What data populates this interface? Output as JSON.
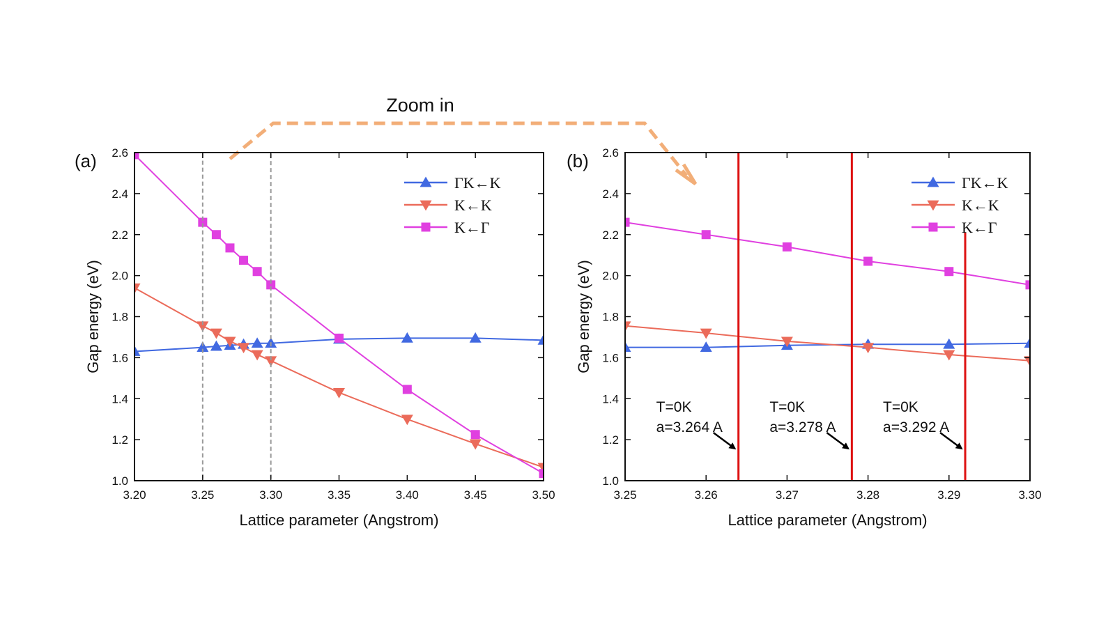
{
  "zoom_label": "Zoom in",
  "colors": {
    "gamma_k_k": "#4169E1",
    "k_k": "#EB6B5A",
    "k_gamma": "#E040E0",
    "marker_line": "#DD1111",
    "zoom_arrow": "#F2AE78",
    "zoom_box": "#999999"
  },
  "chart_data": [
    {
      "type": "line",
      "panel_label": "(a)",
      "xlabel": "Lattice parameter (Angstrom)",
      "ylabel": "Gap energy (eV)",
      "xlim": [
        3.2,
        3.5
      ],
      "ylim": [
        1.0,
        2.6
      ],
      "xticks": [
        "3.20",
        "3.25",
        "3.30",
        "3.35",
        "3.40",
        "3.45",
        "3.50"
      ],
      "yticks": [
        "1.0",
        "1.2",
        "1.4",
        "1.6",
        "1.8",
        "2.0",
        "2.2",
        "2.4",
        "2.6"
      ],
      "legend_position": "top-right",
      "zoom_region": {
        "x": [
          3.25,
          3.3
        ],
        "y": [
          1.0,
          2.6
        ]
      },
      "series": [
        {
          "name": "ΓK←K",
          "marker": "triangle-up",
          "x": [
            3.2,
            3.25,
            3.26,
            3.27,
            3.28,
            3.29,
            3.3,
            3.35,
            3.4,
            3.45,
            3.5
          ],
          "y": [
            1.63,
            1.65,
            1.655,
            1.66,
            1.665,
            1.67,
            1.67,
            1.69,
            1.695,
            1.695,
            1.685
          ]
        },
        {
          "name": "K←K",
          "marker": "triangle-down",
          "x": [
            3.2,
            3.25,
            3.26,
            3.27,
            3.28,
            3.29,
            3.3,
            3.35,
            3.4,
            3.45,
            3.5
          ],
          "y": [
            1.94,
            1.755,
            1.72,
            1.68,
            1.65,
            1.615,
            1.585,
            1.43,
            1.3,
            1.18,
            1.065
          ]
        },
        {
          "name": "K←Γ",
          "marker": "square",
          "x": [
            3.2,
            3.25,
            3.26,
            3.27,
            3.28,
            3.29,
            3.3,
            3.35,
            3.4,
            3.45,
            3.5
          ],
          "y": [
            2.59,
            2.26,
            2.2,
            2.135,
            2.075,
            2.02,
            1.955,
            1.695,
            1.445,
            1.225,
            1.035
          ]
        }
      ]
    },
    {
      "type": "line",
      "panel_label": "(b)",
      "xlabel": "Lattice parameter (Angstrom)",
      "ylabel": "Gap energy (eV)",
      "xlim": [
        3.25,
        3.3
      ],
      "ylim": [
        1.0,
        2.6
      ],
      "xticks": [
        "3.25",
        "3.26",
        "3.27",
        "3.28",
        "3.29",
        "3.30"
      ],
      "yticks": [
        "1.0",
        "1.2",
        "1.4",
        "1.6",
        "1.8",
        "2.0",
        "2.2",
        "2.4",
        "2.6"
      ],
      "legend_position": "top-right",
      "series": [
        {
          "name": "ΓK←K",
          "marker": "triangle-up",
          "x": [
            3.25,
            3.26,
            3.27,
            3.28,
            3.29,
            3.3
          ],
          "y": [
            1.65,
            1.65,
            1.66,
            1.665,
            1.665,
            1.67
          ]
        },
        {
          "name": "K←K",
          "marker": "triangle-down",
          "x": [
            3.25,
            3.26,
            3.27,
            3.28,
            3.29,
            3.3
          ],
          "y": [
            1.755,
            1.72,
            1.68,
            1.65,
            1.615,
            1.585
          ]
        },
        {
          "name": "K←Γ",
          "marker": "square",
          "x": [
            3.25,
            3.26,
            3.27,
            3.28,
            3.29,
            3.3
          ],
          "y": [
            2.26,
            2.2,
            2.14,
            2.07,
            2.02,
            1.955
          ]
        }
      ],
      "annotations": [
        {
          "line1": "T=0K",
          "line2": "a=3.264 A",
          "x": 3.264,
          "y_top": 2.6
        },
        {
          "line1": "T=0K",
          "line2": "a=3.278 A",
          "x": 3.278,
          "y_top": 2.6
        },
        {
          "line1": "T=0K",
          "line2": "a=3.292 A",
          "x": 3.292,
          "y_top": 2.21
        }
      ]
    }
  ]
}
